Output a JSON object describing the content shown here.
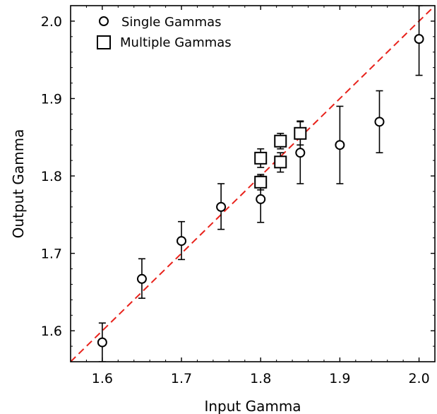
{
  "chart_data": {
    "type": "scatter",
    "title": "",
    "xlabel": "Input Gamma",
    "ylabel": "Output Gamma",
    "xlim": [
      1.56,
      2.02
    ],
    "ylim": [
      1.56,
      2.02
    ],
    "x_ticks": [
      "1.6",
      "1.7",
      "1.8",
      "1.9",
      "2.0"
    ],
    "y_ticks": [
      "1.6",
      "1.7",
      "1.8",
      "1.9",
      "2.0"
    ],
    "grid": false,
    "legend_position": "top-left",
    "reference_line": {
      "style": "dashed",
      "color": "#e8221b",
      "slope": 1,
      "intercept": 0
    },
    "series": [
      {
        "name": "Single Gammas",
        "marker": "circle",
        "points": [
          {
            "x": 1.6,
            "y": 1.585,
            "err_low": 1.56,
            "err_high": 1.61
          },
          {
            "x": 1.65,
            "y": 1.667,
            "err_low": 1.642,
            "err_high": 1.693
          },
          {
            "x": 1.7,
            "y": 1.716,
            "err_low": 1.692,
            "err_high": 1.741
          },
          {
            "x": 1.75,
            "y": 1.76,
            "err_low": 1.731,
            "err_high": 1.79
          },
          {
            "x": 1.8,
            "y": 1.77,
            "err_low": 1.74,
            "err_high": 1.8
          },
          {
            "x": 1.85,
            "y": 1.83,
            "err_low": 1.79,
            "err_high": 1.871
          },
          {
            "x": 1.9,
            "y": 1.84,
            "err_low": 1.79,
            "err_high": 1.89
          },
          {
            "x": 1.95,
            "y": 1.87,
            "err_low": 1.83,
            "err_high": 1.91
          },
          {
            "x": 2.0,
            "y": 1.977,
            "err_low": 1.93,
            "err_high": 2.02
          }
        ]
      },
      {
        "name": "Multiple Gammas",
        "marker": "square",
        "points": [
          {
            "x": 1.8,
            "y": 1.792,
            "err_low": 1.782,
            "err_high": 1.802
          },
          {
            "x": 1.8,
            "y": 1.823,
            "err_low": 1.811,
            "err_high": 1.835
          },
          {
            "x": 1.825,
            "y": 1.818,
            "err_low": 1.805,
            "err_high": 1.83
          },
          {
            "x": 1.825,
            "y": 1.845,
            "err_low": 1.835,
            "err_high": 1.855
          },
          {
            "x": 1.85,
            "y": 1.855,
            "err_low": 1.84,
            "err_high": 1.87
          }
        ]
      }
    ]
  }
}
